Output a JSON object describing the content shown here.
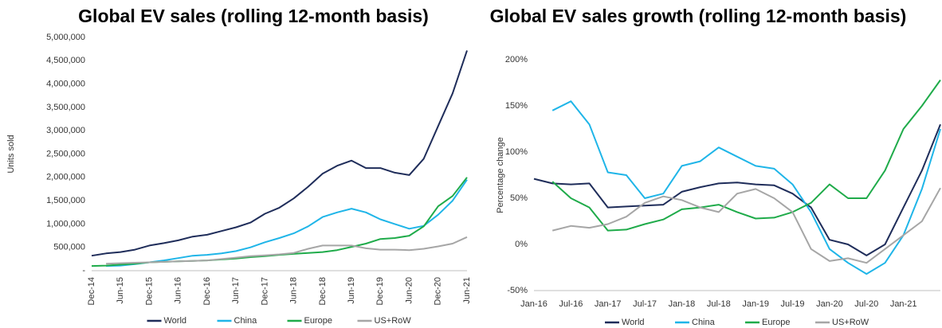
{
  "chart_data": [
    {
      "type": "line",
      "title": "Global EV sales (rolling 12-month basis)",
      "y_label": "Units sold",
      "categories": [
        "Dec-14",
        null,
        "Jun-15",
        null,
        "Dec-15",
        null,
        "Jun-16",
        null,
        "Dec-16",
        null,
        "Jun-17",
        null,
        "Dec-17",
        null,
        "Jun-18",
        null,
        "Dec-18",
        null,
        "Jun-19",
        null,
        "Dec-19",
        null,
        "Jun-20",
        null,
        "Dec-20",
        null,
        "Jun-21"
      ],
      "ylim": [
        0,
        5000000
      ],
      "yticks": [
        {
          "value": 0,
          "label": "-"
        },
        {
          "value": 500000,
          "label": "500,000"
        },
        {
          "value": 1000000,
          "label": "1,000,000"
        },
        {
          "value": 1500000,
          "label": "1,500,000"
        },
        {
          "value": 2000000,
          "label": "2,000,000"
        },
        {
          "value": 2500000,
          "label": "2,500,000"
        },
        {
          "value": 3000000,
          "label": "3,000,000"
        },
        {
          "value": 3500000,
          "label": "3,500,000"
        },
        {
          "value": 4000000,
          "label": "4,000,000"
        },
        {
          "value": 4500000,
          "label": "4,500,000"
        },
        {
          "value": 5000000,
          "label": "5,000,000"
        }
      ],
      "legend": "bottom",
      "grid": false,
      "series": [
        {
          "name": "World",
          "color": "#1f2d5a",
          "values": [
            320000,
            370000,
            400000,
            450000,
            540000,
            590000,
            650000,
            730000,
            770000,
            850000,
            930000,
            1030000,
            1220000,
            1350000,
            1550000,
            1800000,
            2080000,
            2250000,
            2360000,
            2200000,
            2200000,
            2100000,
            2050000,
            2400000,
            3100000,
            3800000,
            4720000
          ]
        },
        {
          "name": "China",
          "color": "#1fb5e8",
          "values": [
            null,
            100000,
            110000,
            140000,
            180000,
            220000,
            270000,
            320000,
            340000,
            370000,
            420000,
            500000,
            610000,
            700000,
            800000,
            950000,
            1150000,
            1250000,
            1330000,
            1250000,
            1100000,
            1000000,
            900000,
            960000,
            1200000,
            1500000,
            1950000
          ]
        },
        {
          "name": "Europe",
          "color": "#1fab4a",
          "values": [
            100000,
            110000,
            130000,
            150000,
            180000,
            190000,
            200000,
            210000,
            220000,
            240000,
            260000,
            290000,
            310000,
            340000,
            360000,
            380000,
            400000,
            440000,
            510000,
            580000,
            680000,
            700000,
            750000,
            950000,
            1380000,
            1600000,
            2000000
          ]
        },
        {
          "name": "US+RoW",
          "color": "#a6a6a6",
          "values": [
            null,
            150000,
            160000,
            170000,
            180000,
            190000,
            200000,
            210000,
            220000,
            250000,
            280000,
            310000,
            330000,
            350000,
            380000,
            470000,
            540000,
            540000,
            540000,
            480000,
            450000,
            450000,
            440000,
            470000,
            520000,
            580000,
            720000
          ]
        }
      ]
    },
    {
      "type": "line",
      "title": "Global EV sales growth (rolling 12-month basis)",
      "y_label": "Percentage change",
      "categories": [
        "Jan-16",
        null,
        "Jul-16",
        null,
        "Jan-17",
        null,
        "Jul-17",
        null,
        "Jan-18",
        null,
        "Jul-18",
        null,
        "Jan-19",
        null,
        "Jul-19",
        null,
        "Jan-20",
        null,
        "Jul-20",
        null,
        "Jan-21",
        null,
        null
      ],
      "ylim": [
        -50,
        200
      ],
      "yticks": [
        {
          "value": -50,
          "label": "-50%"
        },
        {
          "value": 0,
          "label": "0%"
        },
        {
          "value": 50,
          "label": "50%"
        },
        {
          "value": 100,
          "label": "100%"
        },
        {
          "value": 150,
          "label": "150%"
        },
        {
          "value": 200,
          "label": "200%"
        }
      ],
      "legend": "bottom",
      "grid": false,
      "series": [
        {
          "name": "World",
          "color": "#1f2d5a",
          "values": [
            71,
            66,
            65,
            66,
            40,
            41,
            42,
            43,
            57,
            62,
            66,
            67,
            65,
            64,
            55,
            40,
            5,
            0,
            -12,
            0,
            40,
            80,
            130
          ]
        },
        {
          "name": "China",
          "color": "#1fb5e8",
          "values": [
            null,
            145,
            155,
            130,
            78,
            75,
            50,
            55,
            85,
            90,
            105,
            95,
            85,
            82,
            65,
            35,
            -5,
            -20,
            -32,
            -20,
            10,
            60,
            125
          ]
        },
        {
          "name": "Europe",
          "color": "#1fab4a",
          "values": [
            null,
            68,
            50,
            40,
            15,
            16,
            22,
            27,
            38,
            40,
            43,
            35,
            28,
            29,
            35,
            45,
            65,
            50,
            50,
            80,
            125,
            150,
            178
          ]
        },
        {
          "name": "US+RoW",
          "color": "#a6a6a6",
          "values": [
            null,
            15,
            20,
            18,
            22,
            30,
            45,
            52,
            48,
            40,
            35,
            55,
            60,
            50,
            35,
            -5,
            -18,
            -15,
            -20,
            -5,
            10,
            25,
            61
          ]
        }
      ]
    }
  ]
}
